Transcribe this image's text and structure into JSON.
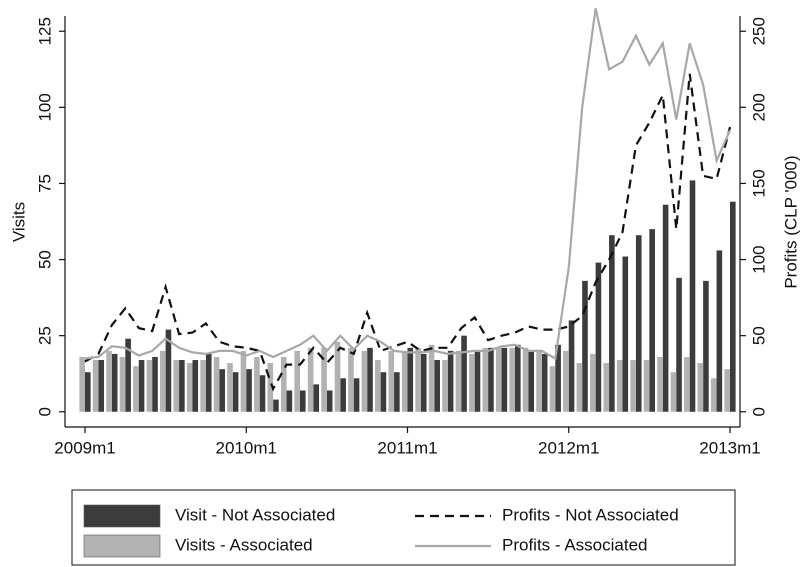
{
  "chart_data": {
    "type": "bar",
    "categories": [
      "2009m1",
      null,
      null,
      null,
      null,
      null,
      null,
      null,
      null,
      null,
      null,
      null,
      "2010m1",
      null,
      null,
      null,
      null,
      null,
      null,
      null,
      null,
      null,
      null,
      null,
      "2011m1",
      null,
      null,
      null,
      null,
      null,
      null,
      null,
      null,
      null,
      null,
      null,
      "2012m1",
      null,
      null,
      null,
      null,
      null,
      null,
      null,
      null,
      null,
      null,
      null,
      "2013m1"
    ],
    "ylabel": "Visits",
    "y2label": "Profits (CLP '000)",
    "ylim": [
      -5,
      130
    ],
    "yticks": [
      0,
      25,
      50,
      75,
      100,
      125
    ],
    "y2lim": [
      -10,
      260
    ],
    "y2ticks": [
      0,
      50,
      100,
      150,
      200,
      250
    ],
    "series": [
      {
        "name": "Visit - Not Associated",
        "type": "bar",
        "color": "#3c3c3c",
        "values": [
          13,
          17,
          19,
          24,
          17,
          18,
          27,
          17,
          17,
          19,
          14,
          13,
          14,
          12,
          4,
          7,
          7,
          9,
          7,
          11,
          11,
          21,
          13,
          13,
          21,
          19,
          17,
          20,
          25,
          20,
          21,
          21,
          22,
          20,
          19,
          22,
          30,
          43,
          49,
          58,
          51,
          58,
          60,
          68,
          44,
          76,
          43,
          53,
          69
        ]
      },
      {
        "name": "Visits - Associated",
        "type": "bar",
        "color": "#b2b2b2",
        "values": [
          18,
          17,
          20,
          18,
          15,
          17,
          20,
          17,
          16,
          17,
          18,
          16,
          20,
          18,
          16,
          18,
          20,
          21,
          21,
          23,
          21,
          20,
          17,
          20,
          20,
          21,
          22,
          17,
          20,
          19,
          21,
          21,
          21,
          21,
          20,
          15,
          20,
          16,
          19,
          16,
          17,
          17,
          17,
          18,
          13,
          18,
          16,
          11,
          14
        ]
      },
      {
        "name": "Profits - Not Associated",
        "type": "line",
        "axis": "y2",
        "dash": true,
        "color": "#111111",
        "values": [
          33,
          38,
          57,
          68,
          55,
          53,
          82,
          51,
          52,
          58,
          46,
          43,
          42,
          40,
          15,
          31,
          31,
          42,
          32,
          42,
          38,
          65,
          40,
          43,
          46,
          40,
          42,
          42,
          55,
          62,
          47,
          50,
          52,
          56,
          54,
          54,
          56,
          63,
          85,
          100,
          118,
          175,
          190,
          208,
          120,
          222,
          155,
          153,
          187
        ]
      },
      {
        "name": "Profits - Associated",
        "type": "line",
        "axis": "y2",
        "dash": false,
        "color": "#a8a8a8",
        "values": [
          35,
          36,
          43,
          42,
          37,
          40,
          48,
          42,
          39,
          38,
          40,
          40,
          37,
          40,
          36,
          40,
          44,
          50,
          40,
          50,
          41,
          50,
          46,
          40,
          39,
          39,
          40,
          38,
          39,
          40,
          40,
          43,
          44,
          40,
          40,
          35,
          95,
          200,
          265,
          225,
          230,
          247,
          228,
          242,
          192,
          242,
          215,
          165,
          185
        ]
      }
    ]
  }
}
